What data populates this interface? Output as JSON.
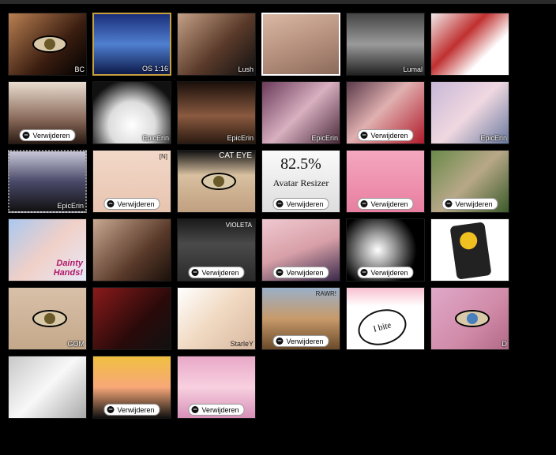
{
  "remove_label": "Verwijderen",
  "tiles": [
    {
      "bg": "linear-gradient(135deg,#b98052,#3a1d10 60%,#000)",
      "caption": "BC",
      "remove": false,
      "kind": "eye"
    },
    {
      "bg": "linear-gradient(180deg,#1b2f7a,#4f7fd0 50%,#0d1a4a)",
      "caption": "OS 1:16",
      "remove": false,
      "kind": "plain",
      "border": "#c8a040"
    },
    {
      "bg": "linear-gradient(135deg,#c4a086,#5a3a2a 55%,#111)",
      "caption": "Lush",
      "remove": false,
      "kind": "plain"
    },
    {
      "bg": "linear-gradient(160deg,#d9b8a4,#b08a78 60%,#8a6a5a)",
      "caption": "",
      "remove": false,
      "kind": "plain",
      "border": "#fff"
    },
    {
      "bg": "linear-gradient(180deg,#444,#9a9a9a 50%,#222)",
      "caption": "Lumal",
      "remove": false,
      "kind": "plain"
    },
    {
      "bg": "linear-gradient(135deg,#f0e8e8,#c03030 40%,#fff 70%)",
      "caption": "",
      "remove": false,
      "kind": "plain"
    },
    {
      "bg": "linear-gradient(180deg,#e8ddd0,#8a6a5a 60%,#2a1a12)",
      "caption": "",
      "remove": true,
      "kind": "plain"
    },
    {
      "bg": "radial-gradient(circle at 50% 70%,#fff,#ddd 40%,#111 80%)",
      "caption": "EpicErin",
      "remove": false,
      "kind": "plain"
    },
    {
      "bg": "linear-gradient(180deg,#1a0f0a,#8a5a40 55%,#2a1a10)",
      "caption": "EpicErin",
      "remove": false,
      "kind": "plain"
    },
    {
      "bg": "linear-gradient(135deg,#6a3a5a,#d8b0c0 50%,#4a2a3a)",
      "caption": "EpicErin",
      "remove": false,
      "kind": "plain"
    },
    {
      "bg": "linear-gradient(135deg,#5a3a4a,#e0b0b0 45%,#b01a2a)",
      "caption": "",
      "remove": true,
      "kind": "plain"
    },
    {
      "bg": "linear-gradient(135deg,#c8b8d8,#f0d8e0 50%,#6a7aa0)",
      "caption": "EpicErin",
      "remove": false,
      "kind": "plain"
    },
    {
      "bg": "linear-gradient(180deg,#c8c8d8,#4a4a6a 50%,#111)",
      "caption": "EpicErin",
      "remove": false,
      "kind": "plain",
      "dotted": true
    },
    {
      "bg": "linear-gradient(180deg,#f2d8c8,#e8c4b0)",
      "caption": "",
      "remove": true,
      "kind": "plain",
      "tag": "[N]"
    },
    {
      "bg": "linear-gradient(180deg,#111,#d8c0a0 40%,#c0a080)",
      "caption": "",
      "remove": false,
      "kind": "eye",
      "top": "CAT EYE"
    },
    {
      "bg": "linear-gradient(180deg,#fafafa,#ddd)",
      "caption": "",
      "remove": true,
      "kind": "resizer",
      "line1": "82.5%",
      "line2": "Avatar Resizer"
    },
    {
      "bg": "linear-gradient(180deg,#f4a8c0,#e87ea0)",
      "caption": "",
      "remove": true,
      "kind": "plain"
    },
    {
      "bg": "linear-gradient(135deg,#6a8a4a,#b8a888 50%,#3a5a2a)",
      "caption": "",
      "remove": true,
      "kind": "plain"
    },
    {
      "bg": "linear-gradient(135deg,#aac8f0,#f0d0c8 50%,#e8e8f8)",
      "caption": "Dainty Hands!",
      "remove": false,
      "kind": "dainty"
    },
    {
      "bg": "linear-gradient(135deg,#c8a890,#5a3a2a 60%,#1a100a)",
      "caption": "",
      "remove": false,
      "kind": "plain"
    },
    {
      "bg": "linear-gradient(180deg,#1a1a1a,#4a4a4a 40%,#2a2a2a)",
      "caption": "",
      "remove": true,
      "kind": "plain",
      "tag": "VIOLETA"
    },
    {
      "bg": "linear-gradient(160deg,#f0c8d0,#d8a0a8 50%,#3a2a4a)",
      "caption": "",
      "remove": true,
      "kind": "plain"
    },
    {
      "bg": "radial-gradient(circle at 40% 50%,#fff,#999 30%,#000 70%)",
      "caption": "",
      "remove": true,
      "kind": "plain"
    },
    {
      "bg": "linear-gradient(180deg,#fff,#fff)",
      "caption": "",
      "remove": false,
      "kind": "phone"
    },
    {
      "bg": "linear-gradient(180deg,#d8c0a8,#c4a88a)",
      "caption": "GOM",
      "remove": false,
      "kind": "eye"
    },
    {
      "bg": "linear-gradient(135deg,#8a1a1a,#2a0a0a 60%,#111)",
      "caption": "",
      "remove": false,
      "kind": "plain"
    },
    {
      "bg": "linear-gradient(135deg,#fff,#f0d8c0 50%,#d8b8a0)",
      "caption": "StarleY",
      "remove": false,
      "kind": "plain",
      "captionDark": true
    },
    {
      "bg": "linear-gradient(180deg,#9ab0c8,#c89a6a 50%,#6a4a2a)",
      "caption": "",
      "remove": true,
      "kind": "plain",
      "tag": "RAWR!"
    },
    {
      "bg": "linear-gradient(180deg,#f8c0d0,#fff 30%,#fff)",
      "caption": "",
      "remove": false,
      "kind": "bubble",
      "line1": "I bite"
    },
    {
      "bg": "linear-gradient(135deg,#e0a8c8,#d08aa8 60%,#b06a88)",
      "caption": "D",
      "remove": false,
      "kind": "eye-blue"
    },
    {
      "bg": "linear-gradient(135deg,#c8c8c8,#f8f8f8 50%,#a8a8a8)",
      "caption": "",
      "remove": false,
      "kind": "plain"
    },
    {
      "bg": "linear-gradient(180deg,#f0c040,#f8a878 50%,#111)",
      "caption": "",
      "remove": true,
      "kind": "plain"
    },
    {
      "bg": "linear-gradient(180deg,#e8a8c8,#f8d0e0 50%,#d890b8)",
      "caption": "",
      "remove": true,
      "kind": "plain"
    }
  ]
}
